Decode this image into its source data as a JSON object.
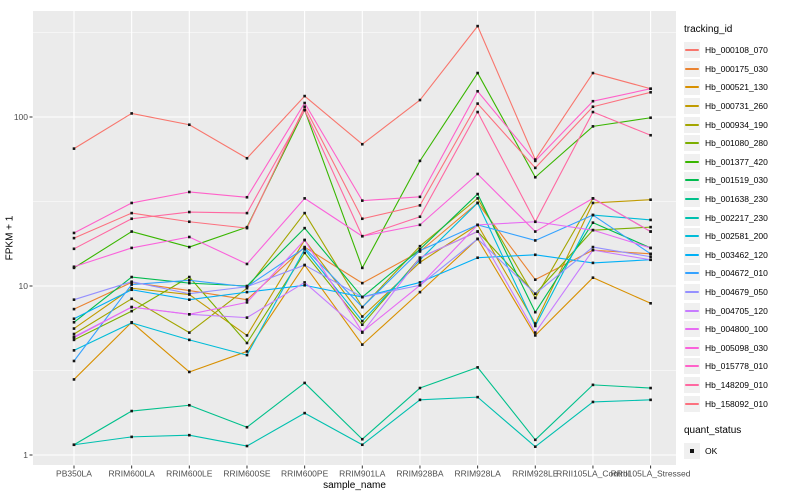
{
  "figure": {
    "background": "#FFFFFF",
    "panel_bg": "#EBEBEB",
    "grid_color": "#FFFFFF",
    "tick_color": "#333333",
    "tick_label_color": "#4D4D4D",
    "point_color": "#141414",
    "legend_key_bg": "#F0F0F0"
  },
  "legend": {
    "tracking_title": "tracking_id",
    "quant_title": "quant_status",
    "quant_items": [
      {
        "label": "OK"
      }
    ]
  },
  "chart_data": {
    "type": "line",
    "title": "",
    "xlabel": "sample_name",
    "ylabel": "FPKM + 1",
    "y_scale": "log10",
    "y_ticks": [
      1,
      10,
      100
    ],
    "y_range": [
      0.87,
      430
    ],
    "grid": true,
    "legend_position": "right",
    "point_shape": "small-black-square",
    "categories": [
      "PB350LA",
      "RRIM600LA",
      "RRIM600LE",
      "RRIM600SE",
      "RRIM600PE",
      "RRIM901LA",
      "RRIM928BA",
      "RRIM928LA",
      "RRIM928LE",
      "RRII105LA_Control",
      "RRII105LA_Stressed"
    ],
    "series": [
      {
        "name": "Hb_000108_070",
        "color": "#F8766D",
        "values": [
          65,
          105,
          90,
          57,
          133,
          69,
          126,
          345,
          56,
          182,
          147
        ]
      },
      {
        "name": "Hb_000175_030",
        "color": "#EA8331",
        "values": [
          7.3,
          10.5,
          9.4,
          8.3,
          17,
          10.4,
          16,
          31,
          10.9,
          16.3,
          15.5
        ]
      },
      {
        "name": "Hb_000521_130",
        "color": "#D89000",
        "values": [
          2.8,
          6.1,
          3.1,
          4.1,
          13.3,
          4.5,
          9.2,
          19,
          5.1,
          11.2,
          7.9
        ]
      },
      {
        "name": "Hb_000731_260",
        "color": "#C09B00",
        "values": [
          5.6,
          9.7,
          8.9,
          5.1,
          18.7,
          6.6,
          13.8,
          23,
          6.0,
          31,
          32.4
        ]
      },
      {
        "name": "Hb_000934_190",
        "color": "#A3A500",
        "values": [
          5.2,
          8.4,
          5.3,
          9.7,
          27,
          7.5,
          17.2,
          33,
          8.5,
          33,
          21
        ]
      },
      {
        "name": "Hb_001080_280",
        "color": "#7CAE00",
        "values": [
          4.8,
          7.1,
          11.3,
          4.6,
          15.7,
          5.9,
          14.7,
          21,
          9.0,
          21.4,
          22.3
        ]
      },
      {
        "name": "Hb_001377_420",
        "color": "#39B600",
        "values": [
          12.8,
          21,
          17,
          22.3,
          110,
          12.8,
          55,
          182,
          44,
          88,
          99
        ]
      },
      {
        "name": "Hb_001519_030",
        "color": "#00BB4E",
        "values": [
          6.1,
          11.3,
          10.4,
          10.0,
          22,
          8.6,
          16.5,
          35,
          7.0,
          23.7,
          16.8
        ]
      },
      {
        "name": "Hb_001638_230",
        "color": "#00C08B",
        "values": [
          1.15,
          1.82,
          1.97,
          1.46,
          2.67,
          1.24,
          2.49,
          3.3,
          1.23,
          2.6,
          2.49
        ]
      },
      {
        "name": "Hb_002217_230",
        "color": "#00C0AF",
        "values": [
          1.15,
          1.28,
          1.31,
          1.13,
          1.77,
          1.15,
          2.12,
          2.2,
          1.12,
          2.06,
          2.12
        ]
      },
      {
        "name": "Hb_002581_200",
        "color": "#00BCD8",
        "values": [
          4.16,
          6.05,
          4.8,
          3.9,
          16.5,
          6.2,
          14.3,
          31,
          5.8,
          26.3,
          24.6
        ]
      },
      {
        "name": "Hb_003462_120",
        "color": "#00B0F6",
        "values": [
          6.4,
          9.5,
          8.3,
          9.2,
          10.1,
          8.6,
          10.5,
          14.7,
          15.3,
          13.7,
          14.3
        ]
      },
      {
        "name": "Hb_004672_010",
        "color": "#35A2FF",
        "values": [
          3.6,
          10.2,
          10.8,
          9.9,
          16.8,
          7.5,
          16.2,
          23,
          18.6,
          26.3,
          15.5
        ]
      },
      {
        "name": "Hb_004679_050",
        "color": "#9590FF",
        "values": [
          8.3,
          10.6,
          9.0,
          9.9,
          13.3,
          8.6,
          10.1,
          19,
          9.0,
          17,
          14.9
        ]
      },
      {
        "name": "Hb_004705_120",
        "color": "#C77CFF",
        "values": [
          5.0,
          7.5,
          6.8,
          6.5,
          10.5,
          5.3,
          14.7,
          21,
          5.3,
          16.3,
          14.3
        ]
      },
      {
        "name": "Hb_004800_100",
        "color": "#E76BF3",
        "values": [
          4.95,
          7.5,
          6.8,
          8.0,
          18.7,
          5.35,
          10.1,
          23,
          24,
          21.4,
          16.8
        ]
      },
      {
        "name": "Hb_005098_030",
        "color": "#FA62DB",
        "values": [
          13,
          16.8,
          19.5,
          13.5,
          33,
          19.7,
          23,
          46,
          21,
          33,
          21
        ]
      },
      {
        "name": "Hb_015778_010",
        "color": "#FF61C9",
        "values": [
          20.6,
          31,
          36,
          33.5,
          121,
          32,
          33.7,
          142,
          55,
          124,
          147
        ]
      },
      {
        "name": "Hb_148209_010",
        "color": "#FF68A1",
        "values": [
          16.6,
          25,
          27.4,
          27,
          110,
          19.7,
          25.7,
          107,
          24,
          107,
          78
        ]
      },
      {
        "name": "Hb_158092_010",
        "color": "#FC717F",
        "values": [
          19.2,
          27,
          24,
          22,
          115,
          25,
          30,
          120,
          50,
          115,
          140
        ]
      }
    ]
  }
}
